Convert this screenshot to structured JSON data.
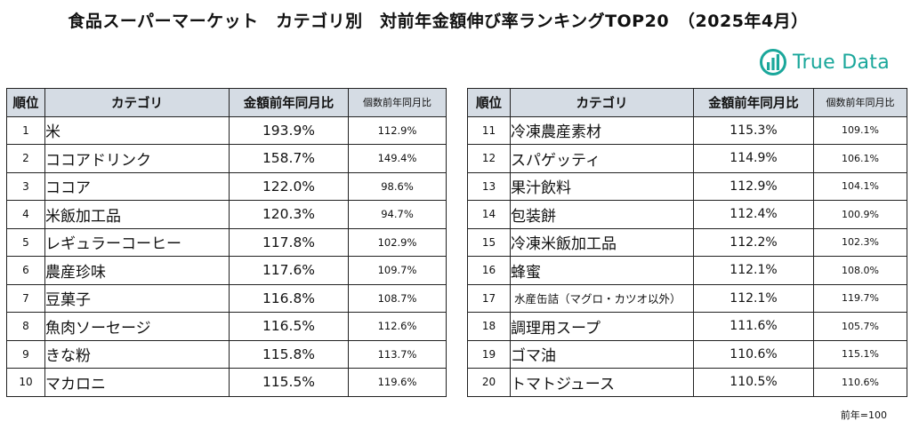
{
  "title": "食品スーパーマーケット　カテゴリ別　対前年金額伸び率ランキングTOP20　（2025年4月）",
  "logo": {
    "text": "True Data",
    "color": "#1aa79b"
  },
  "headers": {
    "rank": "順位",
    "category": "カテゴリ",
    "amount_yoy": "金額前年同月比",
    "count_yoy": "個数前年同月比"
  },
  "header_bg": "#d5dce4",
  "left_rows": [
    {
      "rank": "1",
      "category": "米",
      "amount": "193.9%",
      "count": "112.9%"
    },
    {
      "rank": "2",
      "category": "ココアドリンク",
      "amount": "158.7%",
      "count": "149.4%"
    },
    {
      "rank": "3",
      "category": "ココア",
      "amount": "122.0%",
      "count": "98.6%"
    },
    {
      "rank": "4",
      "category": "米飯加工品",
      "amount": "120.3%",
      "count": "94.7%"
    },
    {
      "rank": "5",
      "category": "レギュラーコーヒー",
      "amount": "117.8%",
      "count": "102.9%"
    },
    {
      "rank": "6",
      "category": "農産珍味",
      "amount": "117.6%",
      "count": "109.7%"
    },
    {
      "rank": "7",
      "category": "豆菓子",
      "amount": "116.8%",
      "count": "108.7%"
    },
    {
      "rank": "8",
      "category": "魚肉ソーセージ",
      "amount": "116.5%",
      "count": "112.6%"
    },
    {
      "rank": "9",
      "category": "きな粉",
      "amount": "115.8%",
      "count": "113.7%"
    },
    {
      "rank": "10",
      "category": "マカロニ",
      "amount": "115.5%",
      "count": "119.6%"
    }
  ],
  "right_rows": [
    {
      "rank": "11",
      "category": "冷凍農産素材",
      "amount": "115.3%",
      "count": "109.1%"
    },
    {
      "rank": "12",
      "category": "スパゲッティ",
      "amount": "114.9%",
      "count": "106.1%"
    },
    {
      "rank": "13",
      "category": "果汁飲料",
      "amount": "112.9%",
      "count": "104.1%"
    },
    {
      "rank": "14",
      "category": "包装餅",
      "amount": "112.4%",
      "count": "100.9%"
    },
    {
      "rank": "15",
      "category": "冷凍米飯加工品",
      "amount": "112.2%",
      "count": "102.3%"
    },
    {
      "rank": "16",
      "category": "蜂蜜",
      "amount": "112.1%",
      "count": "108.0%"
    },
    {
      "rank": "17",
      "category": "水産缶詰（マグロ・カツオ以外）",
      "amount": "112.1%",
      "count": "119.7%"
    },
    {
      "rank": "18",
      "category": "調理用スープ",
      "amount": "111.6%",
      "count": "105.7%"
    },
    {
      "rank": "19",
      "category": "ゴマ油",
      "amount": "110.6%",
      "count": "115.1%"
    },
    {
      "rank": "20",
      "category": "トマトジュース",
      "amount": "110.5%",
      "count": "110.6%"
    }
  ],
  "note": "前年=100"
}
